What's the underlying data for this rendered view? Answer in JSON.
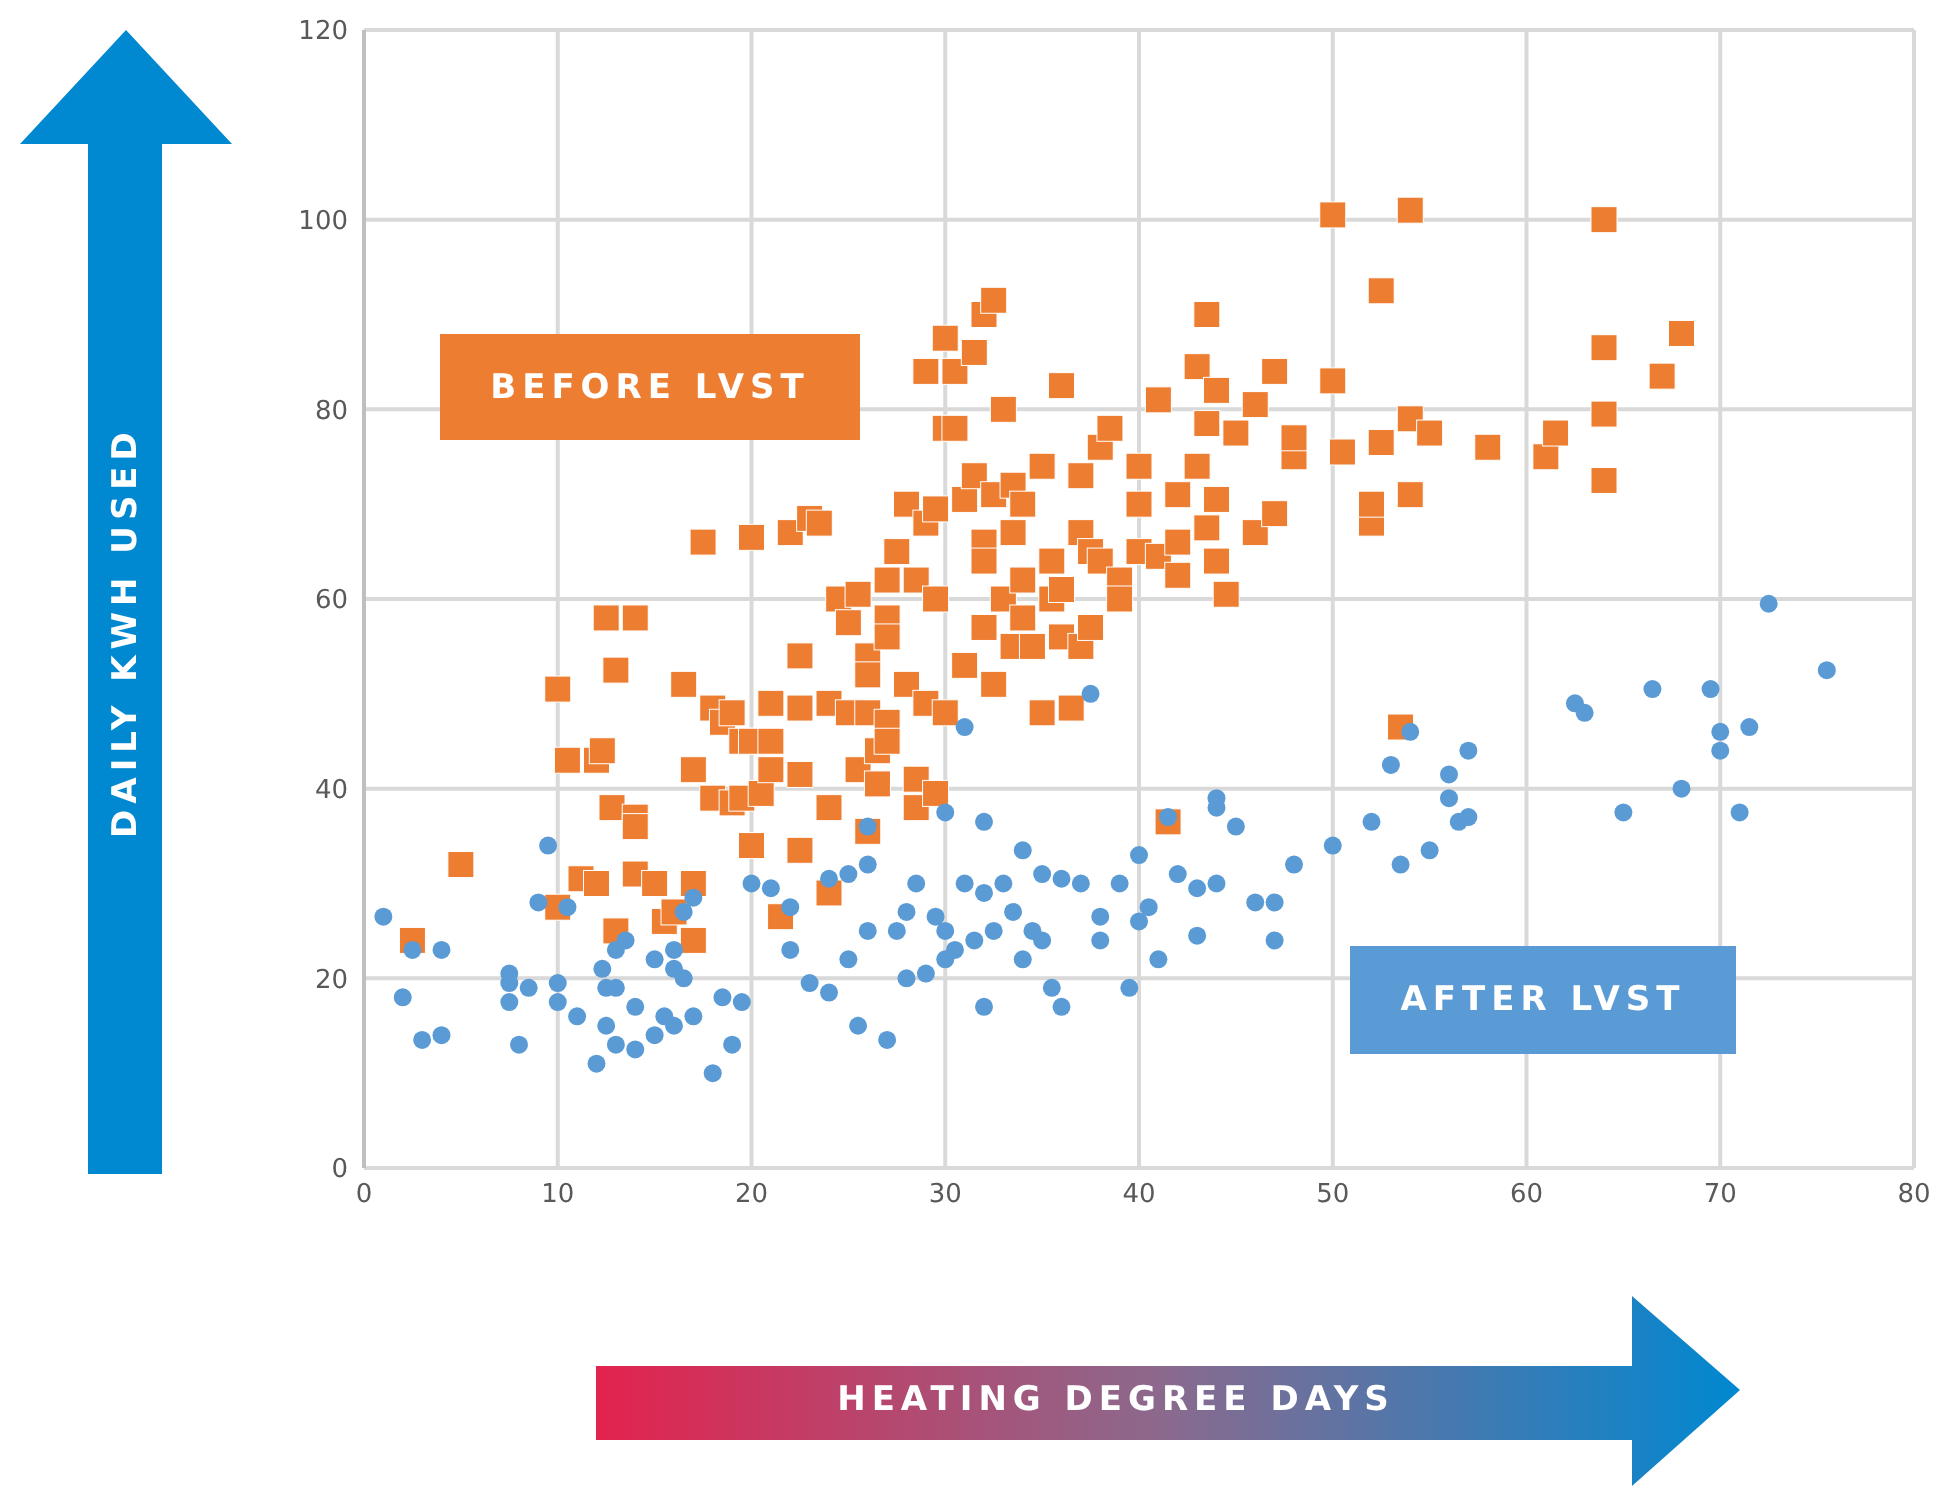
{
  "chart_data": {
    "type": "scatter",
    "xlabel": "HEATING DEGREE DAYS",
    "ylabel": "DAILY KWH USED",
    "xlim": [
      0,
      80
    ],
    "xticks": [
      0,
      10,
      20,
      30,
      40,
      50,
      60,
      70,
      80
    ],
    "ylim": [
      0,
      120
    ],
    "yticks": [
      0,
      20,
      40,
      60,
      80,
      100,
      120
    ],
    "grid": true,
    "series": [
      {
        "name": "BEFORE LVST",
        "color": "#ed7d31",
        "marker": "square",
        "x": [
          2.5,
          5,
          10,
          10,
          10.5,
          11.2,
          12,
          12,
          12.3,
          12.5,
          12.8,
          13,
          13,
          14,
          14,
          14,
          14,
          15,
          15.5,
          16,
          16.5,
          17,
          17,
          17,
          17.5,
          18,
          18,
          18.5,
          19,
          19,
          19.5,
          19.5,
          20,
          20,
          20,
          20.5,
          21,
          21,
          21,
          21.5,
          22,
          22.5,
          22.5,
          22.5,
          22.5,
          23,
          23.5,
          24,
          24,
          24,
          24.5,
          25,
          25,
          25.5,
          25.5,
          26,
          26,
          26,
          26,
          26.5,
          26.5,
          27,
          27,
          27,
          27,
          27,
          27.5,
          28,
          28,
          28.5,
          28.5,
          28.5,
          29,
          29,
          29,
          29.5,
          29.5,
          29.5,
          30,
          30,
          30,
          30.5,
          30.5,
          31,
          31,
          31.5,
          31.5,
          32,
          32,
          32,
          32,
          32.5,
          32.5,
          32.5,
          33,
          33,
          33.5,
          33.5,
          33.5,
          34,
          34,
          34,
          34.5,
          35,
          35,
          35.5,
          35.5,
          36,
          36,
          36,
          36.5,
          37,
          37,
          37,
          37.5,
          37.5,
          38,
          38,
          38.5,
          39,
          39,
          40,
          40,
          40,
          41,
          41,
          41.5,
          42,
          42,
          42,
          43,
          43,
          43.5,
          43.5,
          43.5,
          44,
          44,
          44,
          44.5,
          45,
          46,
          46,
          47,
          47,
          48,
          48,
          50,
          50,
          50.5,
          52,
          52,
          52.5,
          52.5,
          54,
          54,
          54,
          53.5,
          55,
          58,
          61,
          61.5,
          64,
          64,
          64,
          64,
          67,
          68
        ],
        "values": [
          24,
          32,
          27.5,
          50.5,
          43,
          30.5,
          30,
          43,
          44,
          58,
          38,
          25,
          52.5,
          31,
          58,
          37,
          36,
          30,
          26,
          27,
          51,
          42,
          30,
          24,
          66,
          48.5,
          39,
          47,
          48,
          38.5,
          45,
          39,
          34,
          45,
          66.5,
          39.5,
          49,
          45,
          42,
          26.5,
          67,
          48.5,
          54,
          41.5,
          33.5,
          68.5,
          68,
          49,
          38,
          29,
          60,
          57.5,
          48,
          60.5,
          42,
          54,
          52,
          48,
          35.5,
          44,
          40.5,
          62,
          58,
          56,
          47,
          45,
          65,
          70,
          51,
          62,
          41,
          38,
          84,
          68,
          49,
          69.5,
          60,
          39.5,
          87.5,
          78,
          48,
          84,
          78,
          70.5,
          53,
          86,
          73,
          90,
          66,
          64,
          57,
          91.5,
          71,
          51,
          80,
          60,
          72,
          67,
          55,
          70,
          62,
          58,
          55,
          74,
          48,
          64,
          60,
          82.5,
          61,
          56,
          48.5,
          73,
          67,
          55,
          65,
          57,
          64,
          76,
          78,
          62,
          60,
          74,
          70,
          65,
          81,
          64.5,
          36.5,
          71,
          66,
          62.5,
          74,
          84.5,
          90,
          78.5,
          67.5,
          82,
          70.5,
          64,
          60.5,
          77.5,
          67,
          80.5,
          84,
          69,
          75,
          77,
          100.5,
          83,
          75.5,
          68,
          70,
          92.5,
          76.5,
          101,
          79,
          71,
          46.5,
          77.5,
          76,
          75,
          77.5,
          100,
          86.5,
          79.5,
          72.5,
          83.5,
          88
        ]
      },
      {
        "name": "AFTER LVST",
        "color": "#5b9bd5",
        "marker": "circle",
        "x": [
          1,
          2,
          2.5,
          3,
          4,
          4,
          7.5,
          7.5,
          7.5,
          8,
          8.5,
          9,
          9.5,
          10,
          10,
          10.5,
          11,
          12,
          12.3,
          12.5,
          12.5,
          13,
          13,
          13,
          13.5,
          14,
          14,
          15,
          15,
          15.5,
          16,
          16,
          16,
          16.5,
          16.5,
          17,
          17,
          18,
          18.5,
          19,
          19.5,
          20,
          21,
          22,
          22,
          23,
          24,
          24,
          25,
          25,
          25.5,
          26,
          26,
          26,
          27,
          27.5,
          28,
          28,
          28.5,
          29,
          29.5,
          30,
          30,
          30,
          30.5,
          31,
          31,
          31.5,
          32,
          32,
          32,
          32.5,
          33,
          33.5,
          34,
          34,
          34.5,
          35,
          35,
          35.5,
          36,
          36,
          37,
          37.5,
          38,
          38,
          39,
          39.5,
          40,
          40,
          40.5,
          41,
          41.5,
          42,
          43,
          43,
          44,
          44,
          44,
          45,
          46,
          47,
          47,
          48,
          50,
          52,
          53,
          53.5,
          54,
          55,
          56,
          56,
          56.5,
          57,
          57,
          62.5,
          63,
          65,
          66.5,
          68,
          69.5,
          70,
          70,
          71,
          71.5,
          72.5,
          75.5
        ],
        "values": [
          26.5,
          18,
          23,
          13.5,
          14,
          23,
          17.5,
          19.5,
          20.5,
          13,
          19,
          28,
          34,
          17.5,
          19.5,
          27.5,
          16,
          11,
          21,
          19,
          15,
          13,
          19,
          23,
          24,
          12.5,
          17,
          14,
          22,
          16,
          15,
          21,
          23,
          20,
          27,
          16,
          28.5,
          10,
          18,
          13,
          17.5,
          30,
          29.5,
          23,
          27.5,
          19.5,
          18.5,
          30.5,
          22,
          31,
          15,
          32,
          36,
          25,
          13.5,
          25,
          27,
          20,
          30,
          20.5,
          26.5,
          25,
          37.5,
          22,
          23,
          30,
          46.5,
          24,
          36.5,
          29,
          17,
          25,
          30,
          27,
          33.5,
          22,
          25,
          24,
          31,
          19,
          17,
          30.5,
          30,
          50,
          24,
          26.5,
          30,
          19,
          33,
          26,
          27.5,
          22,
          37,
          31,
          24.5,
          29.5,
          39,
          38,
          30,
          36,
          28,
          24,
          28,
          32,
          34,
          36.5,
          42.5,
          32,
          46,
          33.5,
          39,
          41.5,
          36.5,
          37,
          44,
          49,
          48,
          37.5,
          50.5,
          40,
          50.5,
          46,
          44,
          37.5,
          46.5,
          59.5,
          52.5
        ]
      }
    ]
  }
}
